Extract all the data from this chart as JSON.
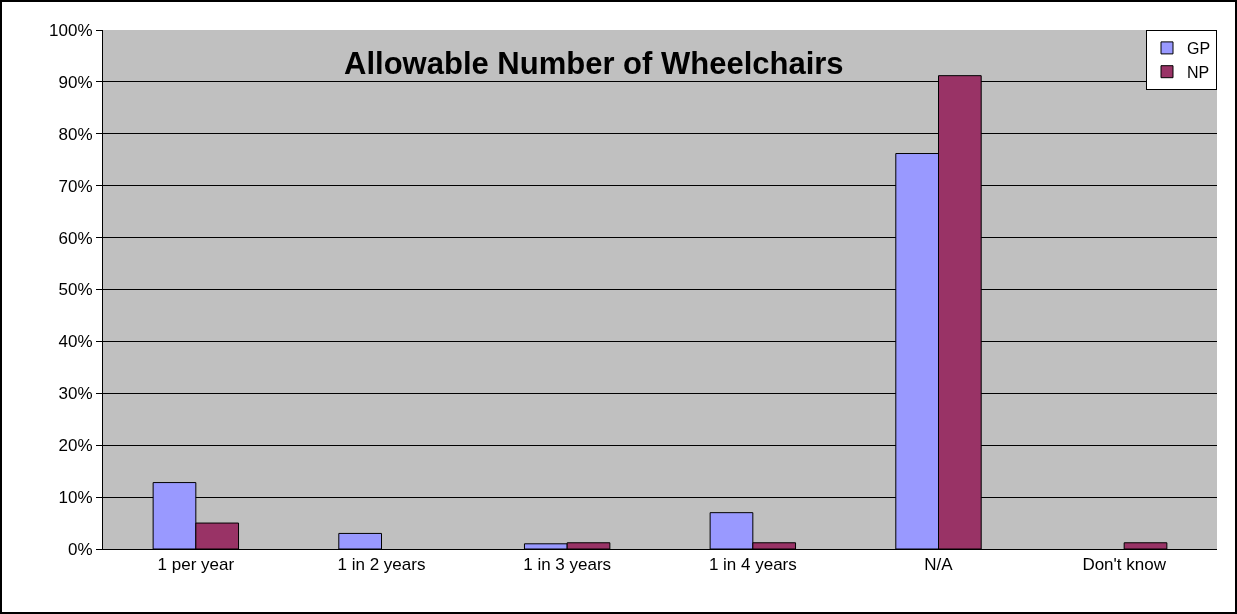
{
  "chart_data": {
    "type": "bar",
    "title": "Allowable Number of Wheelchairs",
    "categories": [
      "1 per year",
      "1 in 2 years",
      "1 in 3 years",
      "1 in 4 years",
      "N/A",
      "Don't know"
    ],
    "series": [
      {
        "name": "GP",
        "color": "#9999ff",
        "values": [
          12.8,
          3,
          1,
          7,
          76.2,
          0
        ]
      },
      {
        "name": "NP",
        "color": "#993366",
        "values": [
          5,
          0,
          1.2,
          1.2,
          91.2,
          1.2
        ]
      }
    ],
    "ylim": [
      0,
      100
    ],
    "yticks": [
      {
        "value": 0,
        "label": "0%"
      },
      {
        "value": 10,
        "label": "10%"
      },
      {
        "value": 20,
        "label": "20%"
      },
      {
        "value": 30,
        "label": "30%"
      },
      {
        "value": 40,
        "label": "40%"
      },
      {
        "value": 50,
        "label": "50%"
      },
      {
        "value": 60,
        "label": "60%"
      },
      {
        "value": 70,
        "label": "70%"
      },
      {
        "value": 80,
        "label": "80%"
      },
      {
        "value": 90,
        "label": "90%"
      },
      {
        "value": 100,
        "label": "100%"
      }
    ],
    "grid": "y",
    "legend": "top right"
  }
}
